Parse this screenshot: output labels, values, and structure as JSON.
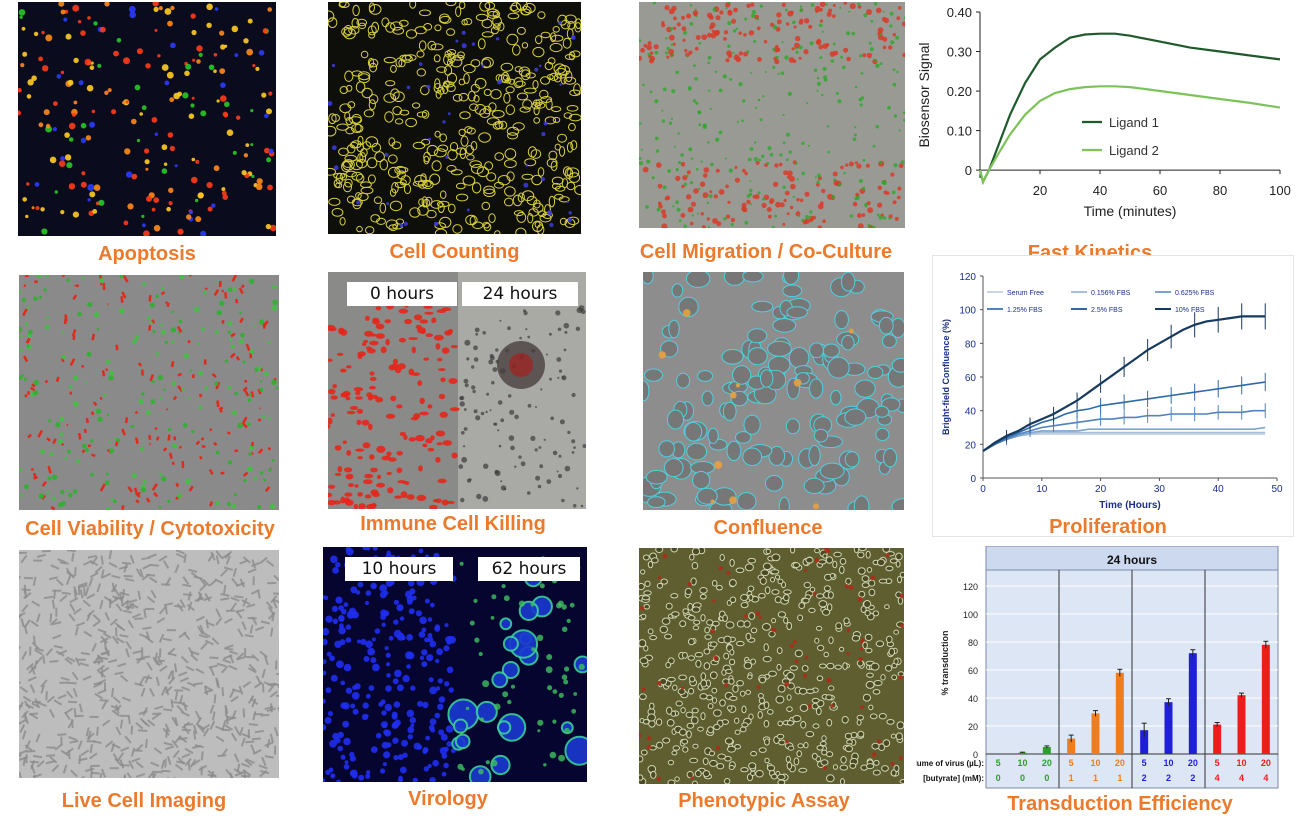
{
  "captions": {
    "apoptosis": "Apoptosis",
    "cell_counting": "Cell Counting",
    "cell_migration": "Cell Migration / Co-Culture",
    "fast_kinetics": "Fast Kinetics",
    "cell_viability": "Cell Viability / Cytotoxicity",
    "immune_cell_killing": "Immune Cell Killing",
    "confluence": "Confluence",
    "proliferation": "Proliferation",
    "live_cell_imaging": "Live Cell Imaging",
    "virology": "Virology",
    "phenotypic_assay": "Phenotypic Assay",
    "transduction_efficiency": "Transduction Efficiency"
  },
  "time_labels": {
    "immune_start": "0 hours",
    "immune_end": "24 hours",
    "virology_start": "10 hours",
    "virology_end": "62 hours"
  },
  "colors": {
    "caption": "#ec7a2c",
    "ligand_1": "#1f5a2c",
    "ligand_2": "#7cc35a",
    "transduction_green": "#2e9e2e",
    "transduction_orange": "#ee7d20",
    "transduction_blue": "#1f1fd6",
    "transduction_red": "#ee1c1c"
  },
  "chart_data": [
    {
      "id": "fast_kinetics",
      "type": "line",
      "xlabel": "Time (minutes)",
      "ylabel": "Biosensor Signal",
      "xlim": [
        0,
        100
      ],
      "ylim": [
        -0.02,
        0.4
      ],
      "xticks": [
        "20",
        "40",
        "60",
        "80",
        "100"
      ],
      "yticks": [
        "0",
        "0.10",
        "0.20",
        "0.30",
        "0.40"
      ],
      "legend_position": "center-right",
      "series": [
        {
          "name": "Ligand 1",
          "x": [
            0,
            1,
            3,
            6,
            10,
            15,
            20,
            25,
            30,
            35,
            40,
            45,
            50,
            60,
            70,
            80,
            90,
            100
          ],
          "y": [
            0,
            -0.03,
            0.0,
            0.06,
            0.14,
            0.22,
            0.28,
            0.31,
            0.335,
            0.343,
            0.345,
            0.345,
            0.34,
            0.325,
            0.31,
            0.3,
            0.29,
            0.28
          ]
        },
        {
          "name": "Ligand 2",
          "x": [
            0,
            1,
            3,
            6,
            10,
            15,
            20,
            25,
            30,
            35,
            40,
            45,
            50,
            60,
            70,
            80,
            90,
            100
          ],
          "y": [
            0,
            -0.03,
            0.0,
            0.04,
            0.09,
            0.14,
            0.175,
            0.195,
            0.205,
            0.21,
            0.212,
            0.212,
            0.21,
            0.2,
            0.19,
            0.18,
            0.17,
            0.158
          ]
        }
      ]
    },
    {
      "id": "proliferation",
      "type": "line",
      "xlabel": "Time (Hours)",
      "ylabel": "Bright-field Confluence (%)",
      "xlim": [
        0,
        50
      ],
      "ylim": [
        0,
        120
      ],
      "xticks": [
        "0",
        "10",
        "20",
        "30",
        "40",
        "50"
      ],
      "yticks": [
        "0",
        "20",
        "40",
        "60",
        "80",
        "100",
        "120"
      ],
      "legend_position": "top",
      "x": [
        0,
        2,
        4,
        6,
        8,
        10,
        12,
        14,
        16,
        18,
        20,
        22,
        24,
        26,
        28,
        30,
        32,
        34,
        36,
        38,
        40,
        42,
        44,
        46,
        48
      ],
      "series": [
        {
          "name": "Serum Free",
          "color": "#c9d6e8",
          "values": [
            16,
            20,
            23,
            25,
            26,
            26,
            26,
            26,
            26,
            26,
            26,
            26,
            26,
            26,
            26,
            26,
            26,
            26,
            26,
            26,
            26,
            26,
            26,
            26,
            26
          ]
        },
        {
          "name": "0.156% FBS",
          "color": "#a9bedc",
          "values": [
            16,
            20,
            23,
            25,
            26,
            27,
            27,
            27,
            27,
            27,
            27,
            27,
            27,
            27,
            27,
            27,
            27,
            27,
            27,
            27,
            27,
            27,
            27,
            27,
            27
          ]
        },
        {
          "name": "0.625% FBS",
          "color": "#7ea3cf",
          "values": [
            16,
            20,
            23,
            25,
            27,
            28,
            28,
            28,
            28,
            29,
            29,
            29,
            29,
            29,
            29,
            29,
            29,
            29,
            29,
            29,
            29,
            29,
            29,
            29,
            30
          ]
        },
        {
          "name": "1.25% FBS",
          "color": "#4f84c0",
          "values": [
            16,
            20,
            23,
            26,
            28,
            30,
            31,
            32,
            33,
            34,
            35,
            35,
            36,
            36,
            37,
            37,
            38,
            38,
            38,
            38,
            39,
            39,
            39,
            40,
            40
          ]
        },
        {
          "name": "2.5% FBS",
          "color": "#2e6aa8",
          "values": [
            16,
            20,
            24,
            27,
            30,
            33,
            35,
            38,
            40,
            41,
            43,
            44,
            45,
            46,
            47,
            48,
            49,
            50,
            51,
            52,
            53,
            54,
            55,
            56,
            57
          ]
        },
        {
          "name": "10% FBS",
          "color": "#173a5e",
          "values": [
            16,
            21,
            25,
            28,
            32,
            35,
            38,
            42,
            46,
            51,
            56,
            61,
            66,
            71,
            76,
            80,
            84,
            88,
            91,
            93,
            94,
            95,
            96,
            96,
            96
          ]
        }
      ]
    },
    {
      "id": "transduction_efficiency",
      "type": "bar",
      "title": "24 hours",
      "ylabel": "% transduction",
      "ylim": [
        0,
        120
      ],
      "yticks": [
        "0",
        "20",
        "40",
        "60",
        "80",
        "100",
        "120"
      ],
      "row_labels": [
        "olume of virus (µL):",
        "[butyrate] (mM):"
      ],
      "groups": [
        {
          "volume": [
            "5",
            "10",
            "20"
          ],
          "butyrate": [
            "0",
            "0",
            "0"
          ],
          "values": [
            0,
            1,
            5
          ],
          "errors": [
            0,
            0.3,
            0.8
          ],
          "color": "#2e9e2e"
        },
        {
          "volume": [
            "5",
            "10",
            "20"
          ],
          "butyrate": [
            "1",
            "1",
            "1"
          ],
          "values": [
            11,
            29,
            58
          ],
          "errors": [
            2.5,
            2,
            2.5
          ],
          "color": "#ee7d20"
        },
        {
          "volume": [
            "5",
            "10",
            "20"
          ],
          "butyrate": [
            "2",
            "2",
            "2"
          ],
          "values": [
            17,
            37,
            72
          ],
          "errors": [
            5,
            2.5,
            2.5
          ],
          "color": "#1f1fd6"
        },
        {
          "volume": [
            "5",
            "10",
            "20"
          ],
          "butyrate": [
            "4",
            "4",
            "4"
          ],
          "values": [
            21,
            42,
            78
          ],
          "errors": [
            1.5,
            1.5,
            2.5
          ],
          "color": "#ee1c1c"
        }
      ]
    }
  ]
}
